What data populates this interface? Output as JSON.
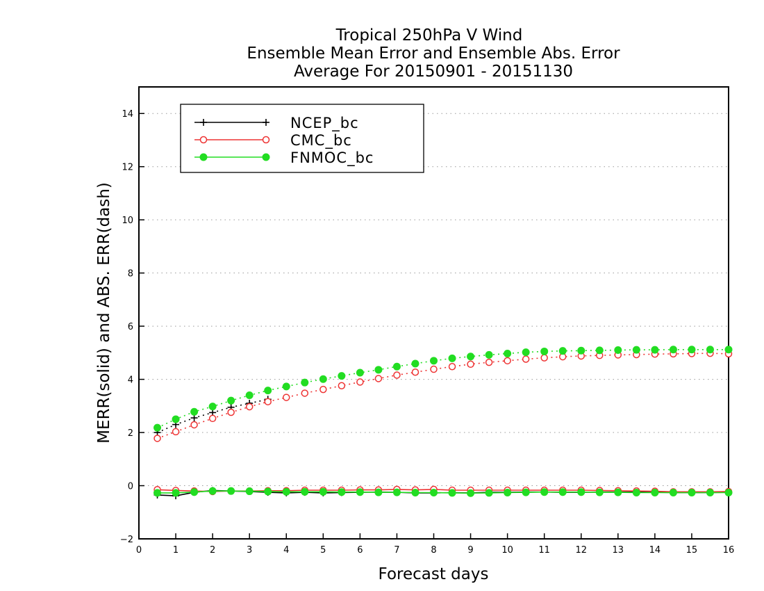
{
  "chart_data": {
    "type": "line",
    "title": [
      "Tropical 250hPa V Wind",
      "Ensemble Mean Error and Ensemble Abs. Error",
      "Average For 20150901 - 20151130"
    ],
    "xlabel": "Forecast days",
    "ylabel": "MERR(solid) and ABS. ERR(dash)",
    "xlim": [
      0,
      16
    ],
    "ylim": [
      -2,
      15
    ],
    "xticks": [
      0,
      1,
      2,
      3,
      4,
      5,
      6,
      7,
      8,
      9,
      10,
      11,
      12,
      13,
      14,
      15,
      16
    ],
    "yticks": [
      -2,
      0,
      2,
      4,
      6,
      8,
      10,
      12,
      14
    ],
    "grid": "horizontal dotted",
    "legend_position": "top-left",
    "x": [
      0.5,
      1,
      1.5,
      2,
      2.5,
      3,
      3.5,
      4,
      4.5,
      5,
      5.5,
      6,
      6.5,
      7,
      7.5,
      8,
      8.5,
      9,
      9.5,
      10,
      10.5,
      11,
      11.5,
      12,
      12.5,
      13,
      13.5,
      14,
      14.5,
      15,
      15.5,
      16
    ],
    "series": [
      {
        "name": "NCEP_bc",
        "color": "#000000",
        "marker": "plus",
        "mean_error": [
          -0.35,
          -0.38,
          -0.25,
          -0.18,
          -0.2,
          -0.22,
          -0.25,
          -0.27,
          -0.25,
          -0.27,
          -0.26,
          -0.25,
          -0.24,
          -0.25,
          -0.27,
          -0.27,
          -0.26,
          -0.27,
          -0.25,
          -0.25,
          -0.24,
          -0.24,
          -0.25,
          -0.25,
          -0.24,
          -0.24,
          -0.24,
          -0.25,
          -0.26,
          -0.26,
          -0.26,
          -0.25
        ],
        "abs_error": [
          2.0,
          2.3,
          2.55,
          2.75,
          2.95,
          3.1,
          3.25,
          null,
          null,
          null,
          null,
          null,
          null,
          null,
          null,
          null,
          null,
          null,
          null,
          null,
          null,
          null,
          null,
          null,
          null,
          null,
          null,
          null,
          null,
          null,
          null,
          null
        ]
      },
      {
        "name": "CMC_bc",
        "color": "#ee3333",
        "marker": "open-circle",
        "mean_error": [
          -0.15,
          -0.18,
          -0.2,
          -0.22,
          -0.2,
          -0.2,
          -0.19,
          -0.19,
          -0.17,
          -0.17,
          -0.17,
          -0.16,
          -0.16,
          -0.14,
          -0.16,
          -0.14,
          -0.17,
          -0.17,
          -0.17,
          -0.17,
          -0.17,
          -0.17,
          -0.17,
          -0.17,
          -0.18,
          -0.19,
          -0.2,
          -0.21,
          -0.23,
          -0.23,
          -0.23,
          -0.22
        ],
        "abs_error": [
          1.78,
          2.03,
          2.29,
          2.53,
          2.76,
          2.97,
          3.16,
          3.32,
          3.48,
          3.62,
          3.76,
          3.9,
          4.03,
          4.16,
          4.27,
          4.38,
          4.48,
          4.57,
          4.64,
          4.7,
          4.76,
          4.81,
          4.85,
          4.88,
          4.9,
          4.92,
          4.93,
          4.95,
          4.96,
          4.97,
          4.98,
          4.96
        ]
      },
      {
        "name": "FNMOC_bc",
        "color": "#22dd22",
        "marker": "filled-circle",
        "mean_error": [
          -0.27,
          -0.27,
          -0.24,
          -0.2,
          -0.2,
          -0.21,
          -0.22,
          -0.23,
          -0.23,
          -0.23,
          -0.24,
          -0.24,
          -0.25,
          -0.25,
          -0.26,
          -0.26,
          -0.27,
          -0.28,
          -0.27,
          -0.26,
          -0.25,
          -0.24,
          -0.24,
          -0.24,
          -0.25,
          -0.25,
          -0.26,
          -0.26,
          -0.26,
          -0.26,
          -0.26,
          -0.26
        ],
        "abs_error": [
          2.18,
          2.5,
          2.78,
          2.98,
          3.2,
          3.4,
          3.58,
          3.73,
          3.88,
          4.01,
          4.13,
          4.25,
          4.36,
          4.48,
          4.59,
          4.7,
          4.79,
          4.86,
          4.92,
          4.97,
          5.02,
          5.05,
          5.07,
          5.08,
          5.09,
          5.1,
          5.11,
          5.11,
          5.12,
          5.12,
          5.12,
          5.12
        ]
      }
    ]
  }
}
